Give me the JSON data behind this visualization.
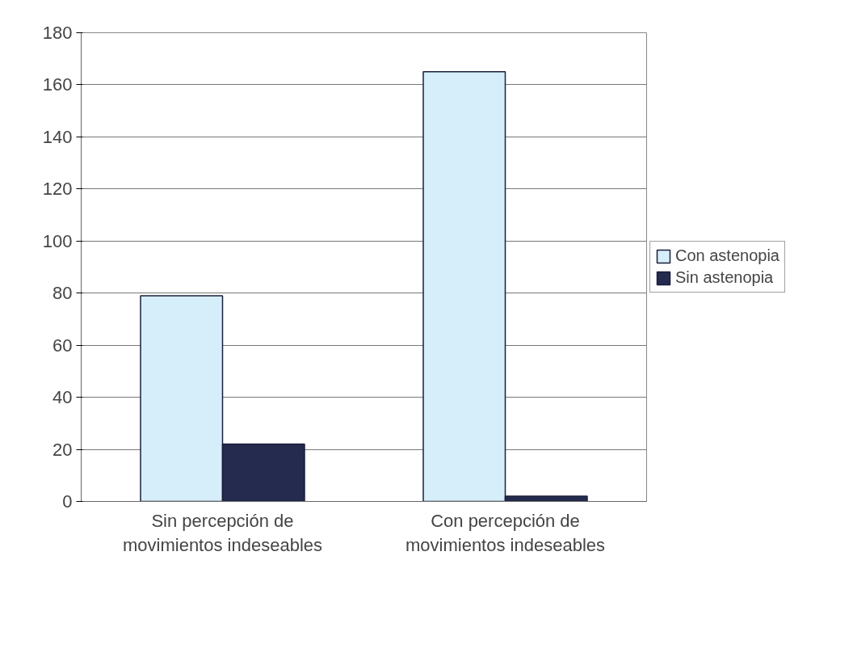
{
  "chart_data": {
    "type": "bar",
    "categories": [
      "Sin percepción de\nmovimientos indeseables",
      "Con percepción de\nmovimientos indeseables"
    ],
    "series": [
      {
        "name": "Con astenopia",
        "color": "#d6eefa",
        "values": [
          79,
          165
        ]
      },
      {
        "name": "Sin astenopia",
        "color": "#252a4f",
        "values": [
          22,
          2
        ]
      }
    ],
    "ylim": [
      0,
      180
    ],
    "yticks": [
      0,
      20,
      40,
      60,
      80,
      100,
      120,
      140,
      160,
      180
    ],
    "grid": "y",
    "legend": "right"
  }
}
